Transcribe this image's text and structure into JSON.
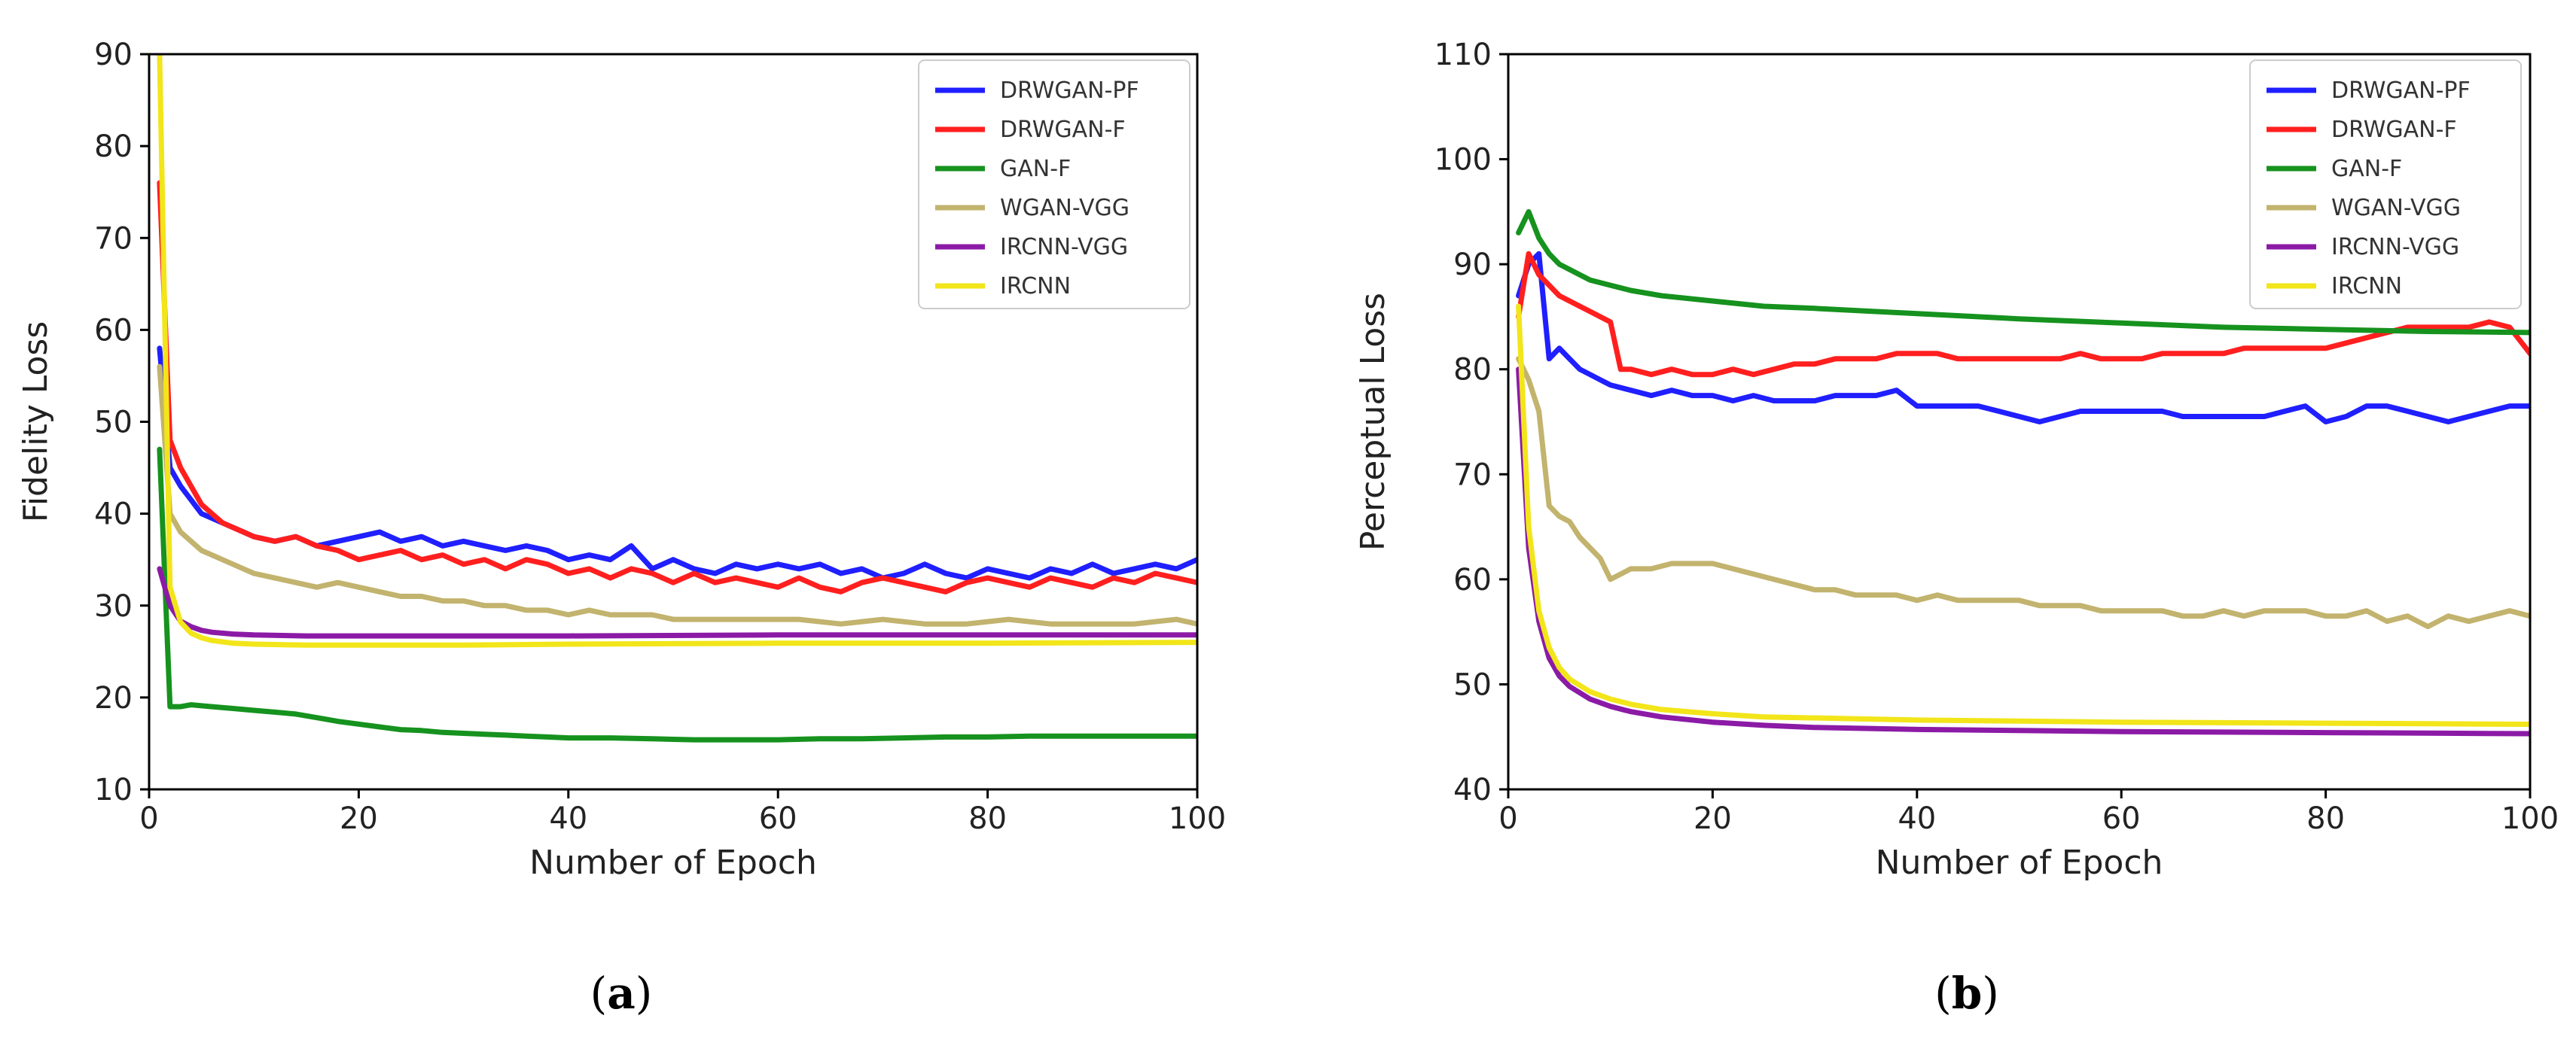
{
  "chart_data": [
    {
      "type": "line",
      "panel": "a",
      "xlabel": "Number of Epoch",
      "ylabel": "Fidelity Loss",
      "xlim": [
        0,
        100
      ],
      "ylim": [
        10,
        90
      ],
      "xticks": [
        0,
        20,
        40,
        60,
        80,
        100
      ],
      "yticks": [
        10,
        20,
        30,
        40,
        50,
        60,
        70,
        80,
        90
      ],
      "legend_position": "top-right",
      "caption": {
        "open": "(",
        "letter": "a",
        "close": ")"
      },
      "series": [
        {
          "name": "DRWGAN-PF",
          "color": "#1f1fff",
          "x": [
            1,
            2,
            3,
            4,
            5,
            6,
            7,
            8,
            9,
            10,
            12,
            14,
            16,
            18,
            20,
            22,
            24,
            26,
            28,
            30,
            32,
            34,
            36,
            38,
            40,
            42,
            44,
            46,
            48,
            50,
            52,
            54,
            56,
            58,
            60,
            62,
            64,
            66,
            68,
            70,
            72,
            74,
            76,
            78,
            80,
            82,
            84,
            86,
            88,
            90,
            92,
            94,
            96,
            98,
            100
          ],
          "y": [
            58,
            45,
            43,
            41.5,
            40,
            39.5,
            39,
            38.5,
            38,
            37.5,
            37,
            37.5,
            36.5,
            37,
            37.5,
            38,
            37,
            37.5,
            36.5,
            37,
            36.5,
            36,
            36.5,
            36,
            35,
            35.5,
            35,
            36.5,
            34,
            35,
            34,
            33.5,
            34.5,
            34,
            34.5,
            34,
            34.5,
            33.5,
            34,
            33,
            33.5,
            34.5,
            33.5,
            33,
            34,
            33.5,
            33,
            34,
            33.5,
            34.5,
            33.5,
            34,
            34.5,
            34,
            35
          ]
        },
        {
          "name": "DRWGAN-F",
          "color": "#ff1f1f",
          "x": [
            1,
            2,
            3,
            4,
            5,
            6,
            7,
            8,
            9,
            10,
            12,
            14,
            16,
            18,
            20,
            22,
            24,
            26,
            28,
            30,
            32,
            34,
            36,
            38,
            40,
            42,
            44,
            46,
            48,
            50,
            52,
            54,
            56,
            58,
            60,
            62,
            64,
            66,
            68,
            70,
            72,
            74,
            76,
            78,
            80,
            82,
            84,
            86,
            88,
            90,
            92,
            94,
            96,
            98,
            100
          ],
          "y": [
            76,
            48,
            45,
            43,
            41,
            40,
            39,
            38.5,
            38,
            37.5,
            37,
            37.5,
            36.5,
            36,
            35,
            35.5,
            36,
            35,
            35.5,
            34.5,
            35,
            34,
            35,
            34.5,
            33.5,
            34,
            33,
            34,
            33.5,
            32.5,
            33.5,
            32.5,
            33,
            32.5,
            32,
            33,
            32,
            31.5,
            32.5,
            33,
            32.5,
            32,
            31.5,
            32.5,
            33,
            32.5,
            32,
            33,
            32.5,
            32,
            33,
            32.5,
            33.5,
            33,
            32.5
          ]
        },
        {
          "name": "GAN-F",
          "color": "#16921e",
          "x": [
            1,
            2,
            3,
            4,
            5,
            6,
            8,
            10,
            12,
            14,
            16,
            18,
            20,
            22,
            24,
            26,
            28,
            30,
            32,
            34,
            36,
            38,
            40,
            44,
            48,
            52,
            56,
            60,
            64,
            68,
            72,
            76,
            80,
            84,
            88,
            92,
            96,
            100
          ],
          "y": [
            47,
            19,
            19,
            19.2,
            19.1,
            19,
            18.8,
            18.6,
            18.4,
            18.2,
            17.8,
            17.4,
            17.1,
            16.8,
            16.5,
            16.4,
            16.2,
            16.1,
            16,
            15.9,
            15.8,
            15.7,
            15.6,
            15.6,
            15.5,
            15.4,
            15.4,
            15.4,
            15.5,
            15.5,
            15.6,
            15.7,
            15.7,
            15.8,
            15.8,
            15.8,
            15.8,
            15.8
          ]
        },
        {
          "name": "WGAN-VGG",
          "color": "#c2b36e",
          "x": [
            1,
            2,
            3,
            4,
            5,
            6,
            7,
            8,
            9,
            10,
            12,
            14,
            16,
            18,
            20,
            22,
            24,
            26,
            28,
            30,
            32,
            34,
            36,
            38,
            40,
            42,
            44,
            46,
            48,
            50,
            54,
            58,
            62,
            66,
            70,
            74,
            78,
            82,
            86,
            90,
            94,
            98,
            100
          ],
          "y": [
            56,
            40,
            38,
            37,
            36,
            35.5,
            35,
            34.5,
            34,
            33.5,
            33,
            32.5,
            32,
            32.5,
            32,
            31.5,
            31,
            31,
            30.5,
            30.5,
            30,
            30,
            29.5,
            29.5,
            29,
            29.5,
            29,
            29,
            29,
            28.5,
            28.5,
            28.5,
            28.5,
            28,
            28.5,
            28,
            28,
            28.5,
            28,
            28,
            28,
            28.5,
            28
          ]
        },
        {
          "name": "IRCNN-VGG",
          "color": "#8b1aa6",
          "x": [
            1,
            2,
            3,
            4,
            5,
            6,
            8,
            10,
            15,
            20,
            30,
            40,
            60,
            80,
            100
          ],
          "y": [
            34,
            30,
            28.3,
            27.7,
            27.3,
            27.1,
            26.9,
            26.8,
            26.7,
            26.7,
            26.7,
            26.7,
            26.8,
            26.8,
            26.8
          ]
        },
        {
          "name": "IRCNN",
          "color": "#f2e51a",
          "x": [
            1,
            2,
            3,
            4,
            5,
            6,
            8,
            10,
            15,
            20,
            30,
            40,
            60,
            80,
            100
          ],
          "y": [
            90,
            32,
            28.2,
            27,
            26.5,
            26.2,
            25.9,
            25.8,
            25.7,
            25.7,
            25.7,
            25.8,
            25.9,
            25.9,
            26
          ]
        }
      ]
    },
    {
      "type": "line",
      "panel": "b",
      "xlabel": "Number of Epoch",
      "ylabel": "Perceptual Loss",
      "xlim": [
        0,
        100
      ],
      "ylim": [
        40,
        110
      ],
      "xticks": [
        0,
        20,
        40,
        60,
        80,
        100
      ],
      "yticks": [
        40,
        50,
        60,
        70,
        80,
        90,
        100,
        110
      ],
      "legend_position": "top-right",
      "caption": {
        "open": "(",
        "letter": "b",
        "close": ")"
      },
      "series": [
        {
          "name": "DRWGAN-PF",
          "color": "#1f1fff",
          "x": [
            1,
            2,
            3,
            4,
            5,
            6,
            7,
            8,
            9,
            10,
            12,
            14,
            16,
            18,
            20,
            22,
            24,
            26,
            28,
            30,
            32,
            34,
            36,
            38,
            40,
            42,
            44,
            46,
            48,
            50,
            52,
            54,
            56,
            58,
            60,
            62,
            64,
            66,
            68,
            70,
            72,
            74,
            76,
            78,
            80,
            82,
            84,
            86,
            88,
            90,
            92,
            94,
            96,
            98,
            100
          ],
          "y": [
            87,
            90,
            91,
            81,
            82,
            81,
            80,
            79.5,
            79,
            78.5,
            78,
            77.5,
            78,
            77.5,
            77.5,
            77,
            77.5,
            77,
            77,
            77,
            77.5,
            77.5,
            77.5,
            78,
            76.5,
            76.5,
            76.5,
            76.5,
            76,
            75.5,
            75,
            75.5,
            76,
            76,
            76,
            76,
            76,
            75.5,
            75.5,
            75.5,
            75.5,
            75.5,
            76,
            76.5,
            75,
            75.5,
            76.5,
            76.5,
            76,
            75.5,
            75,
            75.5,
            76,
            76.5,
            76.5
          ]
        },
        {
          "name": "DRWGAN-F",
          "color": "#ff1f1f",
          "x": [
            1,
            2,
            3,
            4,
            5,
            6,
            7,
            8,
            9,
            10,
            11,
            12,
            14,
            16,
            18,
            20,
            22,
            24,
            26,
            28,
            30,
            32,
            34,
            36,
            38,
            40,
            42,
            44,
            46,
            48,
            50,
            52,
            54,
            56,
            58,
            60,
            62,
            64,
            66,
            68,
            70,
            72,
            74,
            76,
            78,
            80,
            82,
            84,
            86,
            88,
            90,
            92,
            94,
            96,
            98,
            100
          ],
          "y": [
            85,
            91,
            89,
            88,
            87,
            86.5,
            86,
            85.5,
            85,
            84.5,
            80,
            80,
            79.5,
            80,
            79.5,
            79.5,
            80,
            79.5,
            80,
            80.5,
            80.5,
            81,
            81,
            81,
            81.5,
            81.5,
            81.5,
            81,
            81,
            81,
            81,
            81,
            81,
            81.5,
            81,
            81,
            81,
            81.5,
            81.5,
            81.5,
            81.5,
            82,
            82,
            82,
            82,
            82,
            82.5,
            83,
            83.5,
            84,
            84,
            84,
            84,
            84.5,
            84,
            81.5
          ]
        },
        {
          "name": "GAN-F",
          "color": "#16921e",
          "x": [
            1,
            2,
            3,
            4,
            5,
            6,
            8,
            10,
            12,
            15,
            20,
            25,
            30,
            40,
            50,
            60,
            70,
            80,
            90,
            100
          ],
          "y": [
            93,
            95,
            92.5,
            91,
            90,
            89.5,
            88.5,
            88,
            87.5,
            87,
            86.5,
            86,
            85.8,
            85.3,
            84.8,
            84.4,
            84,
            83.8,
            83.6,
            83.5
          ]
        },
        {
          "name": "WGAN-VGG",
          "color": "#c2b36e",
          "x": [
            1,
            2,
            3,
            4,
            5,
            6,
            7,
            8,
            9,
            10,
            12,
            14,
            16,
            18,
            20,
            22,
            24,
            26,
            28,
            30,
            32,
            34,
            36,
            38,
            40,
            42,
            44,
            46,
            48,
            50,
            52,
            54,
            56,
            58,
            60,
            62,
            64,
            66,
            68,
            70,
            72,
            74,
            76,
            78,
            80,
            82,
            84,
            86,
            88,
            90,
            92,
            94,
            96,
            98,
            100
          ],
          "y": [
            81,
            79,
            76,
            67,
            66,
            65.5,
            64,
            63,
            62,
            60,
            61,
            61,
            61.5,
            61.5,
            61.5,
            61,
            60.5,
            60,
            59.5,
            59,
            59,
            58.5,
            58.5,
            58.5,
            58,
            58.5,
            58,
            58,
            58,
            58,
            57.5,
            57.5,
            57.5,
            57,
            57,
            57,
            57,
            56.5,
            56.5,
            57,
            56.5,
            57,
            57,
            57,
            56.5,
            56.5,
            57,
            56,
            56.5,
            55.5,
            56.5,
            56,
            56.5,
            57,
            56.5
          ]
        },
        {
          "name": "IRCNN-VGG",
          "color": "#8b1aa6",
          "x": [
            1,
            2,
            3,
            4,
            5,
            6,
            8,
            10,
            12,
            15,
            20,
            25,
            30,
            40,
            50,
            60,
            70,
            80,
            90,
            100
          ],
          "y": [
            80,
            63,
            56,
            52.5,
            50.8,
            49.8,
            48.6,
            47.9,
            47.4,
            46.9,
            46.4,
            46.1,
            45.9,
            45.7,
            45.6,
            45.5,
            45.45,
            45.4,
            45.35,
            45.3
          ]
        },
        {
          "name": "IRCNN",
          "color": "#f2e51a",
          "x": [
            1,
            2,
            3,
            4,
            5,
            6,
            8,
            10,
            12,
            15,
            20,
            25,
            30,
            40,
            50,
            60,
            70,
            80,
            90,
            100
          ],
          "y": [
            86,
            65,
            57,
            53.5,
            51.6,
            50.5,
            49.3,
            48.6,
            48.1,
            47.6,
            47.2,
            46.9,
            46.8,
            46.6,
            46.5,
            46.4,
            46.35,
            46.3,
            46.25,
            46.2
          ]
        }
      ]
    }
  ]
}
